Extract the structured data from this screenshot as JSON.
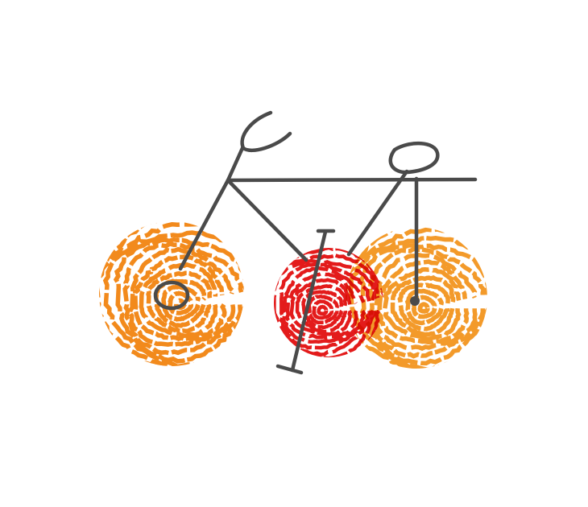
{
  "image": {
    "subject": "bicycle",
    "colors": {
      "background": "#ffffff",
      "frame_stroke": "#4a4a4a",
      "front_wheel_print": "#f28a1c",
      "rear_wheel_print": "#f39a2a",
      "chainring_print": "#e31b1b",
      "overlap_tint": "#ea4a1e"
    },
    "icons": [
      "fingerprint-wheel",
      "fingerprint-wheel",
      "fingerprint-chainring",
      "handlebar",
      "saddle",
      "pedal"
    ]
  }
}
